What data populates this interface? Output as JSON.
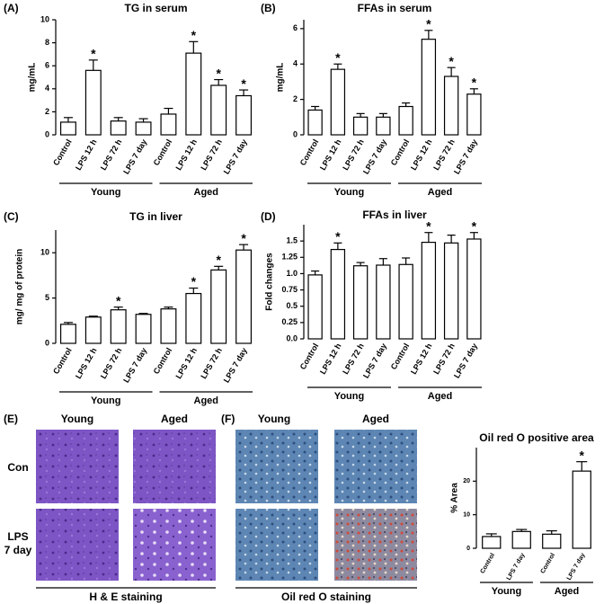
{
  "chart_data": [
    {
      "type": "bar",
      "panel": "(A)",
      "title": "TG in serum",
      "ylabel": "mg/mL",
      "categories": [
        "Control",
        "LPS 12 h",
        "LPS 72 h",
        "LPS 7 day",
        "Control",
        "LPS 12 h",
        "LPS 72 h",
        "LPS 7 day"
      ],
      "values": [
        1.1,
        5.6,
        1.2,
        1.1,
        1.8,
        7.1,
        4.3,
        3.4
      ],
      "errors": [
        0.4,
        0.9,
        0.3,
        0.3,
        0.5,
        1.0,
        0.5,
        0.5
      ],
      "markers": [
        null,
        "*",
        null,
        null,
        null,
        "*",
        "*",
        "*"
      ],
      "groups": [
        {
          "label": "Young",
          "color": "#000000"
        },
        {
          "label": "Aged",
          "color": "#e8262a"
        }
      ],
      "color": "#ffffff",
      "ylim": [
        0,
        10
      ],
      "yticks": [
        0,
        2,
        4,
        6,
        8,
        10
      ]
    },
    {
      "type": "bar",
      "panel": "(B)",
      "title": "FFAs in serum",
      "ylabel": "mg/mL",
      "categories": [
        "Control",
        "LPS 12 h",
        "LPS 72 h",
        "LPS 7 day",
        "Control",
        "LPS 12 h",
        "LPS 72 h",
        "LPS 7 day"
      ],
      "values": [
        1.4,
        3.7,
        1.0,
        1.0,
        1.6,
        5.4,
        3.3,
        2.3
      ],
      "errors": [
        0.2,
        0.3,
        0.2,
        0.2,
        0.2,
        0.5,
        0.5,
        0.3
      ],
      "markers": [
        null,
        "*",
        null,
        null,
        null,
        "*",
        "*",
        "*"
      ],
      "groups": [
        {
          "label": "Young",
          "color": "#000000"
        },
        {
          "label": "Aged",
          "color": "#e8262a"
        }
      ],
      "color": "#ffffff",
      "ylim": [
        0,
        6.5
      ],
      "yticks": [
        0,
        2,
        4,
        6
      ]
    },
    {
      "type": "bar",
      "panel": "(C)",
      "title": "TG in liver",
      "ylabel": "mg/ mg of protein",
      "categories": [
        "Control",
        "LPS 12 h",
        "LPS 72 h",
        "LPS 7 day",
        "Control",
        "LPS 12 h",
        "LPS 72 h",
        "LPS 7 day"
      ],
      "values": [
        2.1,
        2.9,
        3.7,
        3.2,
        3.8,
        5.5,
        8.1,
        10.3
      ],
      "errors": [
        0.2,
        0.1,
        0.3,
        0.1,
        0.2,
        0.6,
        0.4,
        0.6
      ],
      "markers": [
        null,
        null,
        "*",
        null,
        null,
        "*",
        "*",
        "*"
      ],
      "groups": [
        {
          "label": "Young",
          "color": "#000000"
        },
        {
          "label": "Aged",
          "color": "#e8262a"
        }
      ],
      "color": "#ffffff",
      "ylim": [
        0,
        12.5
      ],
      "yticks": [
        0,
        5,
        10
      ]
    },
    {
      "type": "bar",
      "panel": "(D)",
      "title": "FFAs in liver",
      "ylabel": "Fold changes",
      "categories": [
        "Control",
        "LPS 12 h",
        "LPS 72 h",
        "LPS 7 day",
        "Control",
        "LPS 12 h",
        "LPS 72 h",
        "LPS 7 day"
      ],
      "values": [
        0.98,
        1.37,
        1.12,
        1.13,
        1.14,
        1.48,
        1.47,
        1.53
      ],
      "errors": [
        0.06,
        0.1,
        0.05,
        0.1,
        0.1,
        0.15,
        0.12,
        0.1
      ],
      "markers": [
        null,
        "*",
        null,
        null,
        null,
        "*",
        null,
        "*"
      ],
      "groups": [
        {
          "label": "Young",
          "color": "#000000"
        },
        {
          "label": "Aged",
          "color": "#e8262a"
        }
      ],
      "color": "#ffffff",
      "ylim": [
        0,
        1.75
      ],
      "yticks": [
        {
          "value": 0,
          "label": "0.0"
        },
        0.25,
        {
          "value": 0.5,
          "label": "0.5"
        },
        0.75,
        {
          "value": 1,
          "label": "1.0"
        },
        1.25,
        {
          "value": 1.5,
          "label": "1.5"
        }
      ]
    },
    {
      "type": "bar",
      "title": "Oil red O positive area",
      "ylabel": "% Area",
      "categories": [
        "Control",
        "LPS 7 day",
        "Control",
        "LPS 7 day"
      ],
      "values": [
        3.5,
        5,
        4.2,
        23
      ],
      "errors": [
        0.8,
        0.6,
        1,
        2.8
      ],
      "markers": [
        null,
        null,
        null,
        "*"
      ],
      "groups": [
        {
          "label": "Young",
          "color": "#000000"
        },
        {
          "label": "Aged",
          "color": "#e8262a"
        }
      ],
      "color": "#ffffff",
      "ylim": [
        0,
        30
      ],
      "yticks": [
        0,
        10,
        20
      ]
    }
  ],
  "images": [
    {
      "panel": "(E)",
      "columns": [
        {
          "label": "Young",
          "color": "#000000"
        },
        {
          "label": "Aged",
          "color": "#e8262a"
        }
      ],
      "rows": [
        {
          "lines": [
            "Con"
          ]
        },
        {
          "lines": [
            "LPS",
            "7 day"
          ]
        }
      ],
      "caption": "H & E staining"
    },
    {
      "panel": "(F)",
      "columns": [
        {
          "label": "Young",
          "color": "#000000"
        },
        {
          "label": "Aged",
          "color": "#e8262a"
        }
      ],
      "caption": "Oil red O staining"
    }
  ]
}
